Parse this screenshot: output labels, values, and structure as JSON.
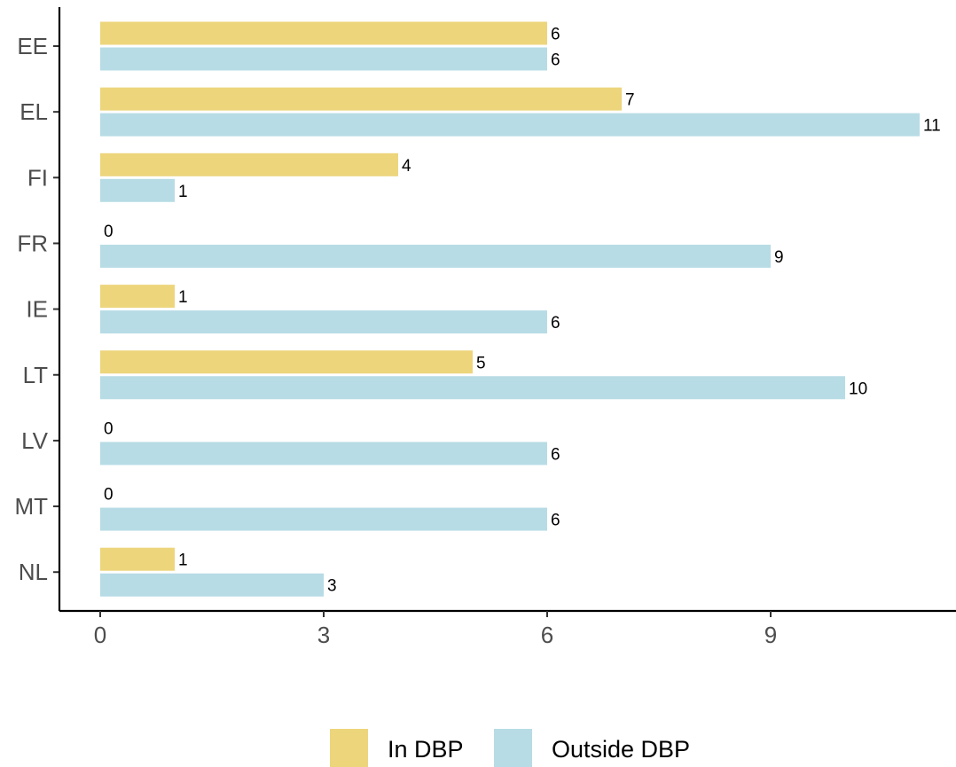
{
  "chart_data": {
    "type": "bar",
    "orientation": "horizontal",
    "categories": [
      "EE",
      "EL",
      "FI",
      "FR",
      "IE",
      "LT",
      "LV",
      "MT",
      "NL"
    ],
    "series": [
      {
        "name": "In DBP",
        "color": "#EDD57C",
        "values": [
          6,
          7,
          4,
          0,
          1,
          5,
          0,
          0,
          1
        ]
      },
      {
        "name": "Outside DBP",
        "color": "#B7DCE5",
        "values": [
          6,
          11,
          1,
          9,
          6,
          10,
          6,
          6,
          3
        ]
      }
    ],
    "title": "",
    "xlabel": "",
    "ylabel": "",
    "xlim": [
      0,
      11.6
    ],
    "xticks": [
      0,
      3,
      6,
      9
    ],
    "grid": false,
    "legend_position": "bottom",
    "data_labels": true
  }
}
